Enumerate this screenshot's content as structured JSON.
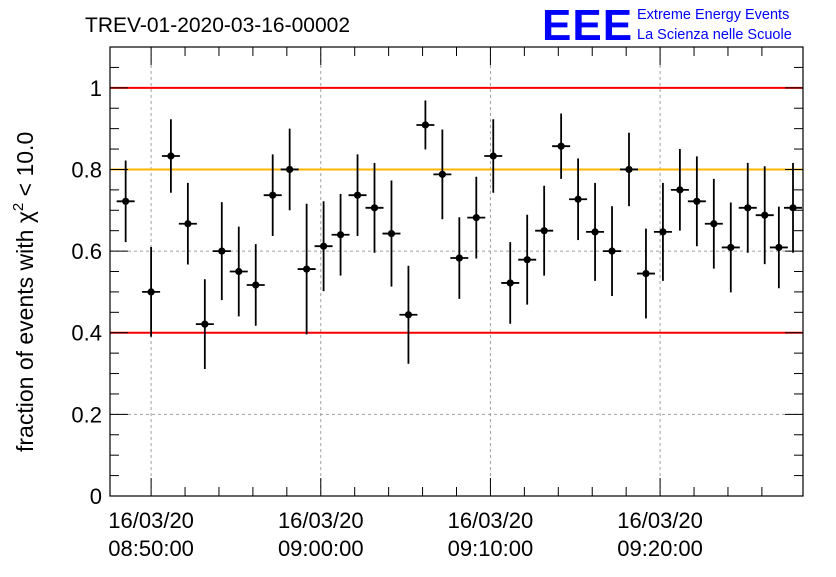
{
  "chart_data": {
    "type": "scatter",
    "title": "TREV-01-2020-03-16-00002",
    "ylabel": "fraction of events with χ² < 10.0",
    "ylabel_parts": {
      "prefix": "fraction of events with ",
      "symbol": "χ",
      "superscript": "2",
      "suffix": " < 10.0"
    },
    "xlabel": "",
    "ylim": [
      0,
      1.1
    ],
    "xlim": [
      "08:48:10",
      "09:27:50"
    ],
    "grid": true,
    "x_tick_labels": [
      {
        "date": "16/03/20",
        "time": "08:50:00"
      },
      {
        "date": "16/03/20",
        "time": "09:00:00"
      },
      {
        "date": "16/03/20",
        "time": "09:10:00"
      },
      {
        "date": "16/03/20",
        "time": "09:20:00"
      }
    ],
    "y_tick_labels": [
      "0",
      "0.2",
      "0.4",
      "0.6",
      "0.8",
      "1"
    ],
    "reference_lines": [
      {
        "y": 1.0,
        "color": "#ff0000"
      },
      {
        "y": 0.8,
        "color": "#ffb400"
      },
      {
        "y": 0.4,
        "color": "#ff0000"
      }
    ],
    "marker_color": "#000000",
    "points": [
      {
        "x": "08:48:30",
        "y": 0.722,
        "err": 0.1
      },
      {
        "x": "08:50:00",
        "y": 0.5,
        "err": 0.11
      },
      {
        "x": "08:51:10",
        "y": 0.833,
        "err": 0.09
      },
      {
        "x": "08:52:10",
        "y": 0.667,
        "err": 0.1
      },
      {
        "x": "08:53:10",
        "y": 0.421,
        "err": 0.11
      },
      {
        "x": "08:54:10",
        "y": 0.6,
        "err": 0.12
      },
      {
        "x": "08:55:10",
        "y": 0.55,
        "err": 0.11
      },
      {
        "x": "08:56:10",
        "y": 0.517,
        "err": 0.1
      },
      {
        "x": "08:57:10",
        "y": 0.737,
        "err": 0.1
      },
      {
        "x": "08:58:10",
        "y": 0.8,
        "err": 0.1
      },
      {
        "x": "08:59:10",
        "y": 0.556,
        "err": 0.16
      },
      {
        "x": "09:00:10",
        "y": 0.612,
        "err": 0.11
      },
      {
        "x": "09:01:10",
        "y": 0.64,
        "err": 0.1
      },
      {
        "x": "09:02:10",
        "y": 0.737,
        "err": 0.1
      },
      {
        "x": "09:03:10",
        "y": 0.706,
        "err": 0.11
      },
      {
        "x": "09:04:10",
        "y": 0.643,
        "err": 0.13
      },
      {
        "x": "09:05:10",
        "y": 0.444,
        "err": 0.12
      },
      {
        "x": "09:06:10",
        "y": 0.909,
        "err": 0.06
      },
      {
        "x": "09:07:10",
        "y": 0.788,
        "err": 0.11
      },
      {
        "x": "09:08:10",
        "y": 0.583,
        "err": 0.1
      },
      {
        "x": "09:09:10",
        "y": 0.682,
        "err": 0.1
      },
      {
        "x": "09:10:10",
        "y": 0.833,
        "err": 0.09
      },
      {
        "x": "09:11:10",
        "y": 0.522,
        "err": 0.1
      },
      {
        "x": "09:12:10",
        "y": 0.579,
        "err": 0.11
      },
      {
        "x": "09:13:10",
        "y": 0.65,
        "err": 0.11
      },
      {
        "x": "09:14:10",
        "y": 0.857,
        "err": 0.08
      },
      {
        "x": "09:15:10",
        "y": 0.727,
        "err": 0.1
      },
      {
        "x": "09:16:10",
        "y": 0.647,
        "err": 0.12
      },
      {
        "x": "09:17:10",
        "y": 0.6,
        "err": 0.11
      },
      {
        "x": "09:18:10",
        "y": 0.8,
        "err": 0.09
      },
      {
        "x": "09:19:10",
        "y": 0.545,
        "err": 0.11
      },
      {
        "x": "09:20:10",
        "y": 0.647,
        "err": 0.12
      },
      {
        "x": "09:21:10",
        "y": 0.75,
        "err": 0.1
      },
      {
        "x": "09:22:10",
        "y": 0.722,
        "err": 0.11
      },
      {
        "x": "09:23:10",
        "y": 0.667,
        "err": 0.11
      },
      {
        "x": "09:24:10",
        "y": 0.609,
        "err": 0.11
      },
      {
        "x": "09:25:10",
        "y": 0.706,
        "err": 0.11
      },
      {
        "x": "09:26:10",
        "y": 0.688,
        "err": 0.12
      },
      {
        "x": "09:27:00",
        "y": 0.609,
        "err": 0.1
      },
      {
        "x": "09:27:50",
        "y": 0.706,
        "err": 0.11
      }
    ]
  },
  "logo": {
    "mark": "EEE",
    "line1": "Extreme Energy Events",
    "line2": "La Scienza nelle Scuole",
    "color": "#0000ff"
  }
}
